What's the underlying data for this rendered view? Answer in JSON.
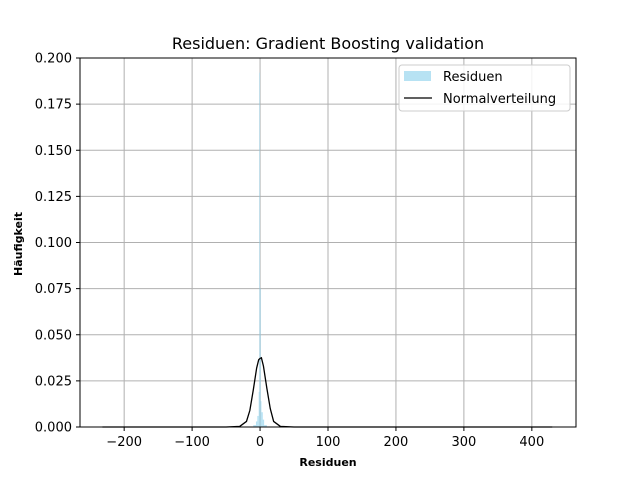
{
  "chart_data": {
    "type": "histogram",
    "title": "Residuen: Gradient Boosting validation",
    "xlabel": "Residuen",
    "ylabel": "Häufigkeit",
    "xlim": [
      -265,
      465
    ],
    "ylim": [
      0,
      0.2
    ],
    "xticks": [
      -200,
      -100,
      0,
      100,
      200,
      300,
      400
    ],
    "xtick_labels": [
      "−200",
      "−100",
      "0",
      "100",
      "200",
      "300",
      "400"
    ],
    "yticks": [
      0.0,
      0.025,
      0.05,
      0.075,
      0.1,
      0.125,
      0.15,
      0.175,
      0.2
    ],
    "ytick_labels": [
      "0.000",
      "0.025",
      "0.050",
      "0.075",
      "0.100",
      "0.125",
      "0.150",
      "0.175",
      "0.200"
    ],
    "grid": true,
    "legend": {
      "placement": "top-right",
      "entries": [
        "Residuen",
        "Normalverteilung"
      ]
    },
    "colors": {
      "histogram": "#87ceeb",
      "normal_curve": "#000000",
      "grid": "#b0b0b0"
    },
    "series": [
      {
        "name": "Residuen",
        "type": "histogram",
        "bins": [
          {
            "x0": -10,
            "x1": -6,
            "value": 0.001
          },
          {
            "x0": -6,
            "x1": -4,
            "value": 0.003
          },
          {
            "x0": -4,
            "x1": -2,
            "value": 0.006
          },
          {
            "x0": -2,
            "x1": -1,
            "value": 0.019
          },
          {
            "x0": -1,
            "x1": 0,
            "value": 0.192
          },
          {
            "x0": 0,
            "x1": 1,
            "value": 0.075
          },
          {
            "x0": 1,
            "x1": 2,
            "value": 0.014
          },
          {
            "x0": 2,
            "x1": 4,
            "value": 0.008
          },
          {
            "x0": 4,
            "x1": 6,
            "value": 0.004
          },
          {
            "x0": 6,
            "x1": 10,
            "value": 0.001
          }
        ]
      },
      {
        "name": "Normalverteilung",
        "type": "line",
        "x": [
          -232,
          -100,
          -50,
          -30,
          -20,
          -15,
          -10,
          -5,
          -2,
          0,
          2,
          5,
          10,
          15,
          20,
          30,
          50,
          100,
          430
        ],
        "y": [
          0.0,
          0.0,
          0.0,
          0.0003,
          0.003,
          0.009,
          0.02,
          0.032,
          0.0365,
          0.0372,
          0.0375,
          0.033,
          0.021,
          0.01,
          0.003,
          0.0003,
          0.0,
          0.0,
          0.0
        ]
      }
    ]
  }
}
